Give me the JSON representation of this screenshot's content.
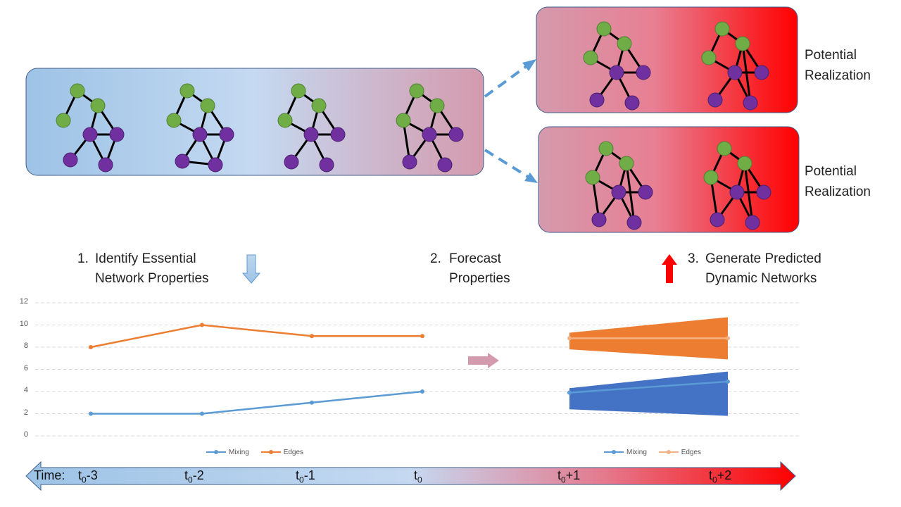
{
  "steps": {
    "step1": {
      "num": "1.",
      "line1": "Identify Essential",
      "line2": "Network Properties"
    },
    "step2": {
      "num": "2.",
      "line1": "Forecast",
      "line2": "Properties"
    },
    "step3": {
      "num": "3.",
      "line1": "Generate Predicted",
      "line2": "Dynamic Networks"
    }
  },
  "realizations": [
    {
      "line1": "Potential",
      "line2": "Realization"
    },
    {
      "line1": "Potential",
      "line2": "Realization"
    }
  ],
  "colors": {
    "node_green": "#70ad47",
    "node_purple": "#7030a0",
    "edges_orange": "#ed7d31",
    "mixing_blue": "#5b9bd5",
    "band_blue": "#4472c4",
    "arrow_red": "#ff0000",
    "timeline_start": "#9dc3e6",
    "timeline_end": "#ff0000"
  },
  "icons": {
    "down_arrow": "down-arrow-icon",
    "right_arrow": "right-arrow-icon",
    "up_arrow": "up-arrow-icon"
  },
  "chart_data": {
    "type": "line",
    "categories": [
      "t0-3",
      "t0-2",
      "t0-1",
      "t0",
      "t0+1",
      "t0+2"
    ],
    "yticks": [
      "0",
      "2",
      "4",
      "6",
      "8",
      "10",
      "12"
    ],
    "ylim": [
      0,
      12
    ],
    "grid": true,
    "series": [
      {
        "name": "Mixing",
        "x": [
          "t0-3",
          "t0-2",
          "t0-1",
          "t0"
        ],
        "values": [
          2,
          2,
          3,
          4
        ],
        "color": "#5b9bd5"
      },
      {
        "name": "Edges",
        "x": [
          "t0-3",
          "t0-2",
          "t0-1",
          "t0"
        ],
        "values": [
          8,
          10,
          9,
          9
        ],
        "color": "#ed7d31"
      }
    ],
    "forecast": [
      {
        "name": "Mixing",
        "x": [
          "t0+1",
          "t0+2"
        ],
        "values": [
          3.9,
          4.9
        ],
        "upper": [
          4.3,
          5.8
        ],
        "lower": [
          2.4,
          1.8
        ],
        "color": "#4472c4"
      },
      {
        "name": "Edges",
        "x": [
          "t0+1",
          "t0+2"
        ],
        "values": [
          8.8,
          8.8
        ],
        "upper": [
          9.3,
          10.7
        ],
        "lower": [
          7.8,
          6.9
        ],
        "color": "#ed7d31"
      }
    ],
    "legend": [
      {
        "label": "Mixing",
        "color": "#5b9bd5"
      },
      {
        "label": "Edges",
        "color": "#ed7d31"
      }
    ],
    "legend_forecast": [
      {
        "label": "Mixing",
        "color": "#5b9bd5"
      },
      {
        "label": "Edges",
        "color": "#f4b183"
      }
    ]
  },
  "timeline": {
    "prefix": "Time:",
    "ticks": [
      {
        "base": "t",
        "sub": "0",
        "rest": "-3"
      },
      {
        "base": "t",
        "sub": "0",
        "rest": "-2"
      },
      {
        "base": "t",
        "sub": "0",
        "rest": "-1"
      },
      {
        "base": "t",
        "sub": "0",
        "rest": ""
      },
      {
        "base": "t",
        "sub": "0",
        "rest": "+1"
      },
      {
        "base": "t",
        "sub": "0",
        "rest": "+2"
      }
    ]
  }
}
